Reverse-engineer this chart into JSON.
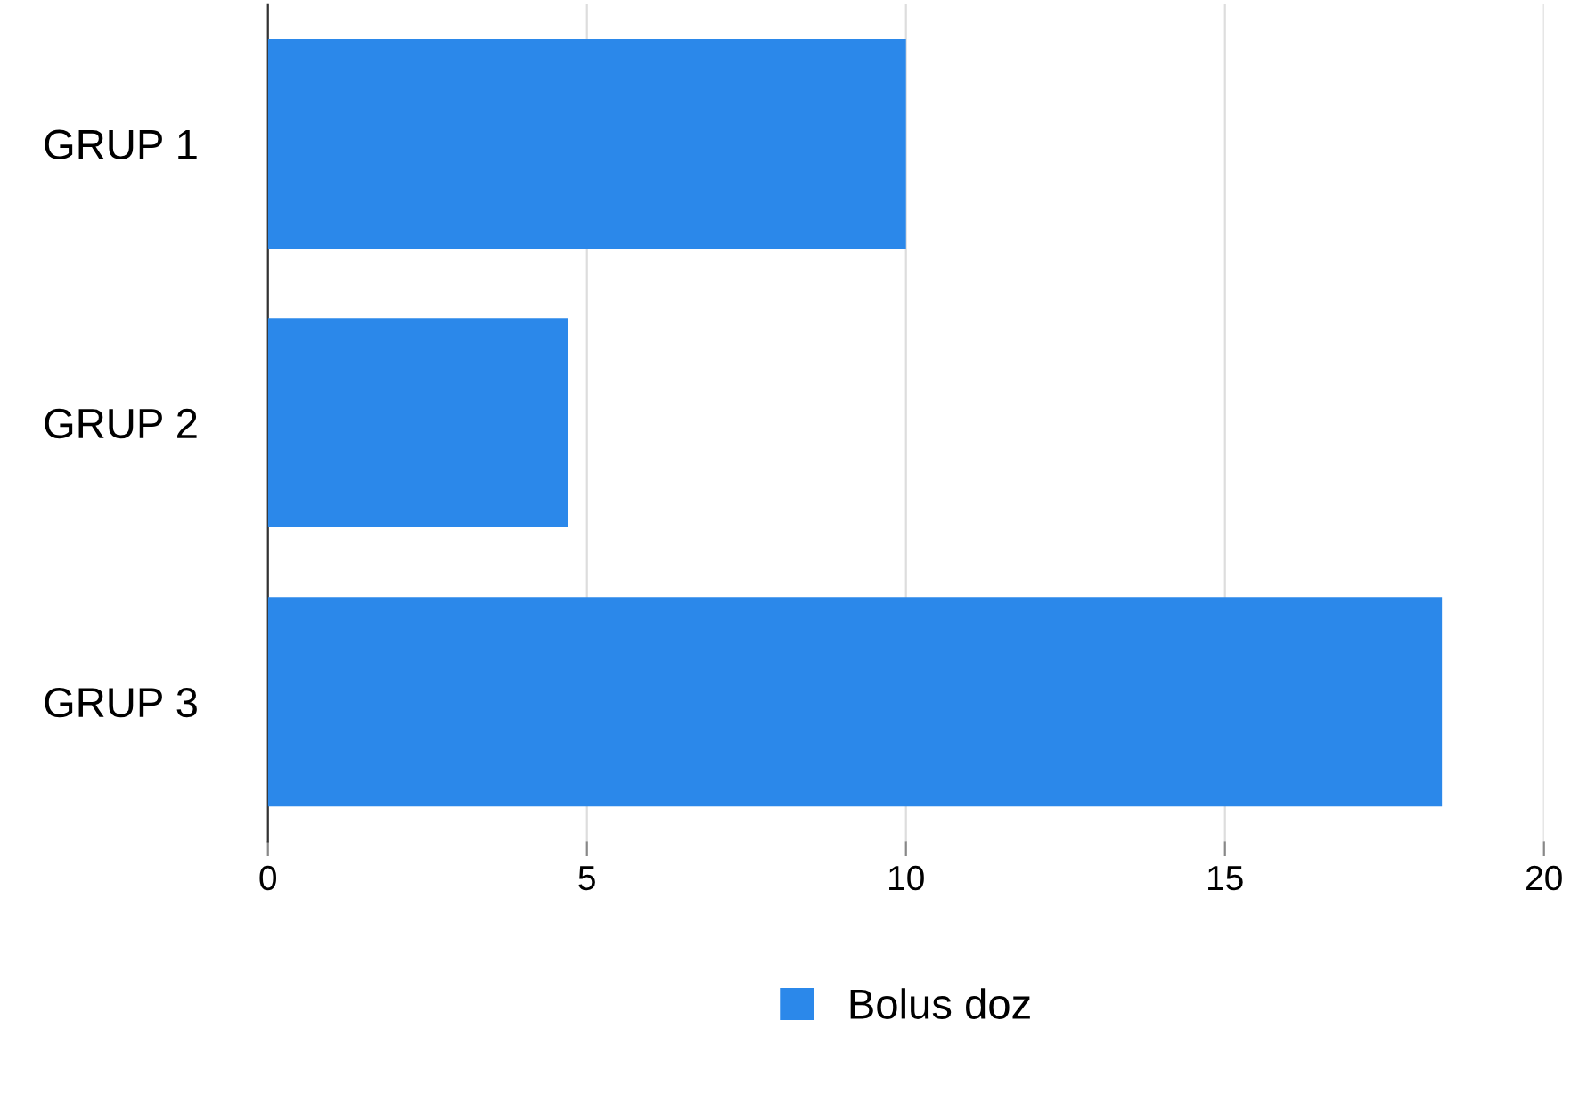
{
  "chart_data": {
    "type": "bar",
    "orientation": "horizontal",
    "categories": [
      "GRUP 1",
      "GRUP 2",
      "GRUP 3"
    ],
    "series": [
      {
        "name": "Bolus doz",
        "color": "#2b88ea",
        "values": [
          10,
          4.7,
          18.4
        ]
      }
    ],
    "xlim": [
      0,
      20
    ],
    "xticks": [
      0,
      5,
      10,
      15,
      20
    ],
    "grid": "x",
    "legend": "bottom"
  }
}
